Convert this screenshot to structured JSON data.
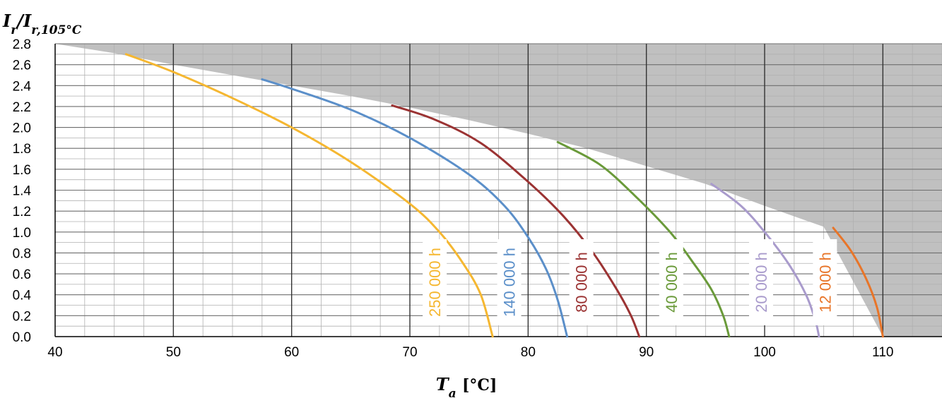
{
  "chart_data": {
    "type": "line",
    "title": "",
    "xlabel": {
      "main": "T",
      "sub": "a",
      "unit": "[°C]"
    },
    "ylabel": {
      "main": "I",
      "sub1": "r",
      "slash": "/",
      "main2": "I",
      "sub2": "r,105°C"
    },
    "xlim": [
      40,
      115
    ],
    "ylim": [
      0,
      2.8
    ],
    "x_ticks": [
      "40",
      "50",
      "60",
      "70",
      "80",
      "90",
      "100",
      "110"
    ],
    "y_ticks": [
      "0.0",
      "0.2",
      "0.4",
      "0.6",
      "0.8",
      "1.0",
      "1.2",
      "1.4",
      "1.6",
      "1.8",
      "2.0",
      "2.2",
      "2.4",
      "2.6",
      "2.8"
    ],
    "grid": true,
    "forbidden_region_boundary": {
      "x": [
        40,
        45,
        50,
        55,
        60,
        65,
        70,
        75,
        80,
        85,
        90,
        95,
        100,
        105,
        110
      ],
      "y": [
        2.8,
        2.71,
        2.6,
        2.5,
        2.4,
        2.3,
        2.19,
        2.07,
        1.94,
        1.8,
        1.63,
        1.46,
        1.25,
        1.05,
        0
      ],
      "color": "#c0c0c0"
    },
    "series": [
      {
        "name": "250 000 h",
        "color": "#f5b731",
        "x": [
          46,
          50,
          55,
          60,
          65,
          70,
          72.5,
          74.5,
          76,
          77
        ],
        "y": [
          2.7,
          2.53,
          2.28,
          2.0,
          1.67,
          1.27,
          1.0,
          0.7,
          0.4,
          0
        ]
      },
      {
        "name": "140 000 h",
        "color": "#5b8fc9",
        "x": [
          57.5,
          60,
          65,
          70,
          75,
          78,
          80,
          81.5,
          82.5,
          83.3
        ],
        "y": [
          2.46,
          2.37,
          2.17,
          1.9,
          1.55,
          1.25,
          0.95,
          0.65,
          0.35,
          0
        ]
      },
      {
        "name": "80 000 h",
        "color": "#9b3333",
        "x": [
          68.5,
          72,
          76,
          80,
          83,
          85.5,
          87.5,
          88.7,
          89.4
        ],
        "y": [
          2.21,
          2.08,
          1.85,
          1.48,
          1.15,
          0.8,
          0.45,
          0.2,
          0
        ]
      },
      {
        "name": "40 000 h",
        "color": "#6a9a3a",
        "x": [
          82.5,
          86,
          89,
          92,
          94,
          95.5,
          96.5,
          97
        ],
        "y": [
          1.86,
          1.65,
          1.35,
          1.0,
          0.7,
          0.45,
          0.2,
          0
        ]
      },
      {
        "name": "20 000 h",
        "color": "#a99bcc",
        "x": [
          95.5,
          98,
          100,
          102,
          103.5,
          104.3,
          104.6
        ],
        "y": [
          1.46,
          1.25,
          1.0,
          0.7,
          0.4,
          0.15,
          0
        ]
      },
      {
        "name": "12 000 h",
        "color": "#e87529",
        "x": [
          105.8,
          107.3,
          108.6,
          109.5,
          110
        ],
        "y": [
          1.04,
          0.82,
          0.55,
          0.28,
          0
        ]
      }
    ]
  }
}
